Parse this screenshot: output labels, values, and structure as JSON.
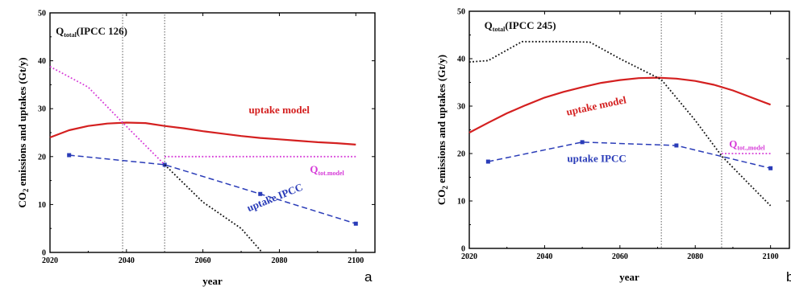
{
  "colors": {
    "uptake_model": "#d42020",
    "uptake_ipcc": "#2a3cb8",
    "q_model": "#d63bd8",
    "q_total": "#111111",
    "q_total_magenta": "#d63bd8",
    "vline": "#777777"
  },
  "chart_data": [
    {
      "type": "line",
      "panel_letter": "a",
      "xlabel": "year",
      "ylabel": "CO2 emissions and uptakes (Gt/y)",
      "xlim": [
        2020,
        2105
      ],
      "ylim": [
        0,
        50
      ],
      "xticks": [
        2020,
        2040,
        2060,
        2080,
        2100
      ],
      "yticks": [
        0,
        10,
        20,
        30,
        40,
        50
      ],
      "grid": false,
      "series": [
        {
          "name": "uptake model",
          "key": "uptake_model",
          "style": "solid",
          "x": [
            2020,
            2025,
            2030,
            2035,
            2040,
            2045,
            2050,
            2055,
            2060,
            2065,
            2070,
            2075,
            2080,
            2085,
            2090,
            2095,
            2100
          ],
          "y": [
            24.0,
            25.5,
            26.4,
            26.9,
            27.1,
            27.0,
            26.4,
            25.9,
            25.3,
            24.8,
            24.3,
            23.9,
            23.6,
            23.3,
            23.0,
            22.8,
            22.5
          ]
        },
        {
          "name": "uptake IPCC",
          "key": "uptake_ipcc",
          "style": "dashed",
          "markers": true,
          "x": [
            2025,
            2050,
            2075,
            2100
          ],
          "y": [
            20.3,
            18.3,
            12.2,
            6.0
          ]
        },
        {
          "name": "Qtot,model",
          "key": "q_model",
          "style": "dotted",
          "x": [
            2050,
            2100
          ],
          "y": [
            20.0,
            20.0
          ]
        },
        {
          "name": "Qtotal(IPCC 126)",
          "key": "q_total_magenta",
          "style": "dotted",
          "x": [
            2020,
            2030,
            2039,
            2050
          ],
          "y": [
            38.8,
            34.5,
            27.1,
            18.3
          ]
        },
        {
          "name": "Qtotal(IPCC 126)",
          "key": "q_total",
          "style": "dotted",
          "x": [
            2050,
            2060,
            2070,
            2075.5
          ],
          "y": [
            18.3,
            10.5,
            5.0,
            0.0
          ]
        }
      ],
      "vlines": [
        2039,
        2050
      ],
      "annotations": [
        {
          "key": "q_total",
          "main": "Q",
          "sub": "total",
          "rest": "(IPCC 126)",
          "x": 2021.5,
          "y": 45.5
        },
        {
          "key": "uptake_model",
          "main": "uptake model",
          "x": 2072,
          "y": 29.0
        },
        {
          "key": "q_model",
          "main": "Q",
          "sub": "tot.model",
          "x": 2088,
          "y": 16.6
        },
        {
          "key": "uptake_ipcc",
          "main": "uptake IPCC",
          "x": 2072,
          "y": 8.5,
          "rotate": -22
        }
      ]
    },
    {
      "type": "line",
      "panel_letter": "b",
      "xlabel": "year",
      "ylabel": "CO2 emissions and uptakes (Gt/y)",
      "xlim": [
        2020,
        2105
      ],
      "ylim": [
        0,
        50
      ],
      "xticks": [
        2020,
        2040,
        2060,
        2080,
        2100
      ],
      "yticks": [
        0,
        10,
        20,
        30,
        40,
        50
      ],
      "grid": false,
      "series": [
        {
          "name": "uptake model",
          "key": "uptake_model",
          "style": "solid",
          "x": [
            2020,
            2025,
            2030,
            2035,
            2040,
            2045,
            2050,
            2055,
            2060,
            2065,
            2070,
            2075,
            2080,
            2085,
            2090,
            2095,
            2100
          ],
          "y": [
            24.4,
            26.5,
            28.5,
            30.2,
            31.8,
            33.0,
            34.0,
            34.9,
            35.5,
            35.9,
            36.0,
            35.8,
            35.3,
            34.5,
            33.3,
            31.8,
            30.3
          ]
        },
        {
          "name": "uptake IPCC",
          "key": "uptake_ipcc",
          "style": "dashed",
          "markers": true,
          "x": [
            2025,
            2050,
            2075,
            2100
          ],
          "y": [
            18.3,
            22.4,
            21.7,
            16.9
          ]
        },
        {
          "name": "Qtot,model",
          "key": "q_model",
          "style": "dotted",
          "x": [
            2087,
            2100
          ],
          "y": [
            20.0,
            20.0
          ]
        },
        {
          "name": "Qtotal(IPCC 245)",
          "key": "q_total",
          "style": "dotted",
          "x": [
            2020,
            2025,
            2034,
            2045,
            2052,
            2060,
            2071,
            2080,
            2087,
            2095,
            2100
          ],
          "y": [
            39.3,
            39.6,
            43.6,
            43.6,
            43.5,
            40.0,
            35.6,
            27.0,
            19.5,
            13.0,
            9.0
          ]
        }
      ],
      "vlines": [
        2071,
        2087
      ],
      "annotations": [
        {
          "key": "q_total",
          "main": "Q",
          "sub": "total",
          "rest": "(IPCC 245)",
          "x": 2024,
          "y": 46.3
        },
        {
          "key": "uptake_model",
          "main": "uptake model",
          "x": 2046,
          "y": 28.0,
          "rotate": -12
        },
        {
          "key": "q_model",
          "main": "Q",
          "sub": "tot.,model",
          "x": 2089,
          "y": 21.3
        },
        {
          "key": "uptake_ipcc",
          "main": "uptake IPCC",
          "x": 2046,
          "y": 18.2
        }
      ]
    }
  ]
}
